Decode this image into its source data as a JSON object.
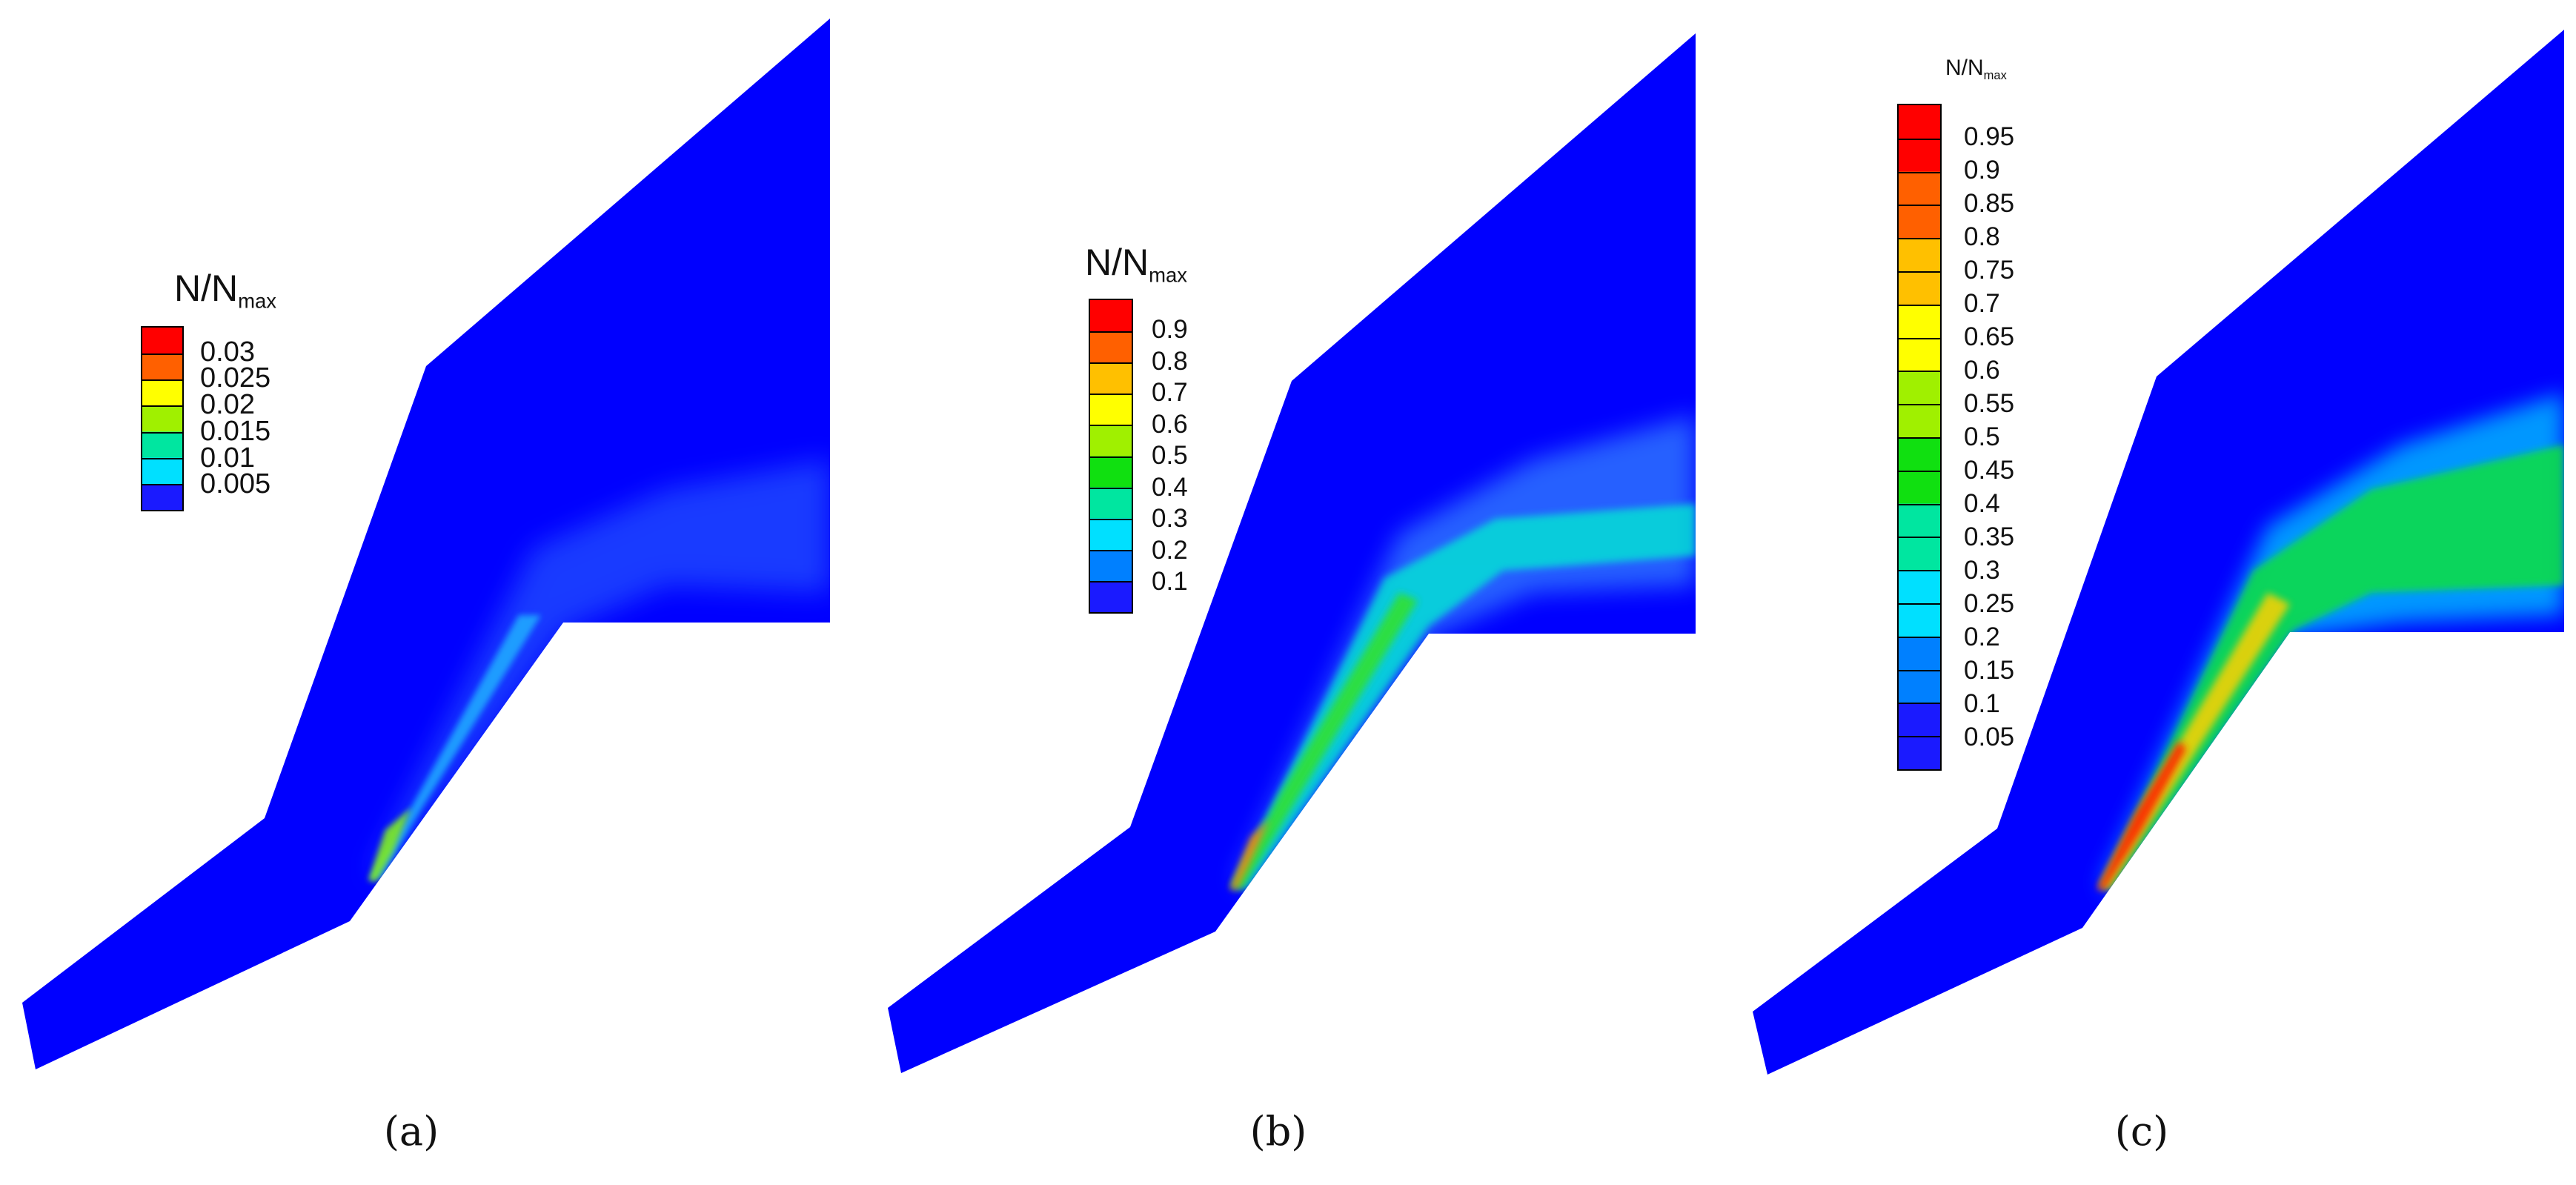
{
  "panels": [
    {
      "caption": "(a)",
      "legend": {
        "title_main": "N/N",
        "title_sub": "max",
        "labels": [
          "0.03",
          "0.025",
          "0.02",
          "0.015",
          "0.01",
          "0.005"
        ]
      }
    },
    {
      "caption": "(b)",
      "legend": {
        "title_main": "N/N",
        "title_sub": "max",
        "labels": [
          "0.9",
          "0.8",
          "0.7",
          "0.6",
          "0.5",
          "0.4",
          "0.3",
          "0.2",
          "0.1"
        ]
      }
    },
    {
      "caption": "(c)",
      "legend": {
        "title_main": "N/N",
        "title_sub": "max",
        "labels": [
          "0.95",
          "0.9",
          "0.85",
          "0.8",
          "0.75",
          "0.7",
          "0.65",
          "0.6",
          "0.55",
          "0.5",
          "0.45",
          "0.4",
          "0.35",
          "0.3",
          "0.25",
          "0.2",
          "0.15",
          "0.1",
          "0.05"
        ]
      }
    }
  ],
  "colors": {
    "domain": "#0000ff",
    "colormap": [
      "#1a1aff",
      "#0080ff",
      "#00e0ff",
      "#00e6a0",
      "#10e010",
      "#a0f000",
      "#ffff00",
      "#ffc000",
      "#ff6000",
      "#ff0000"
    ]
  }
}
